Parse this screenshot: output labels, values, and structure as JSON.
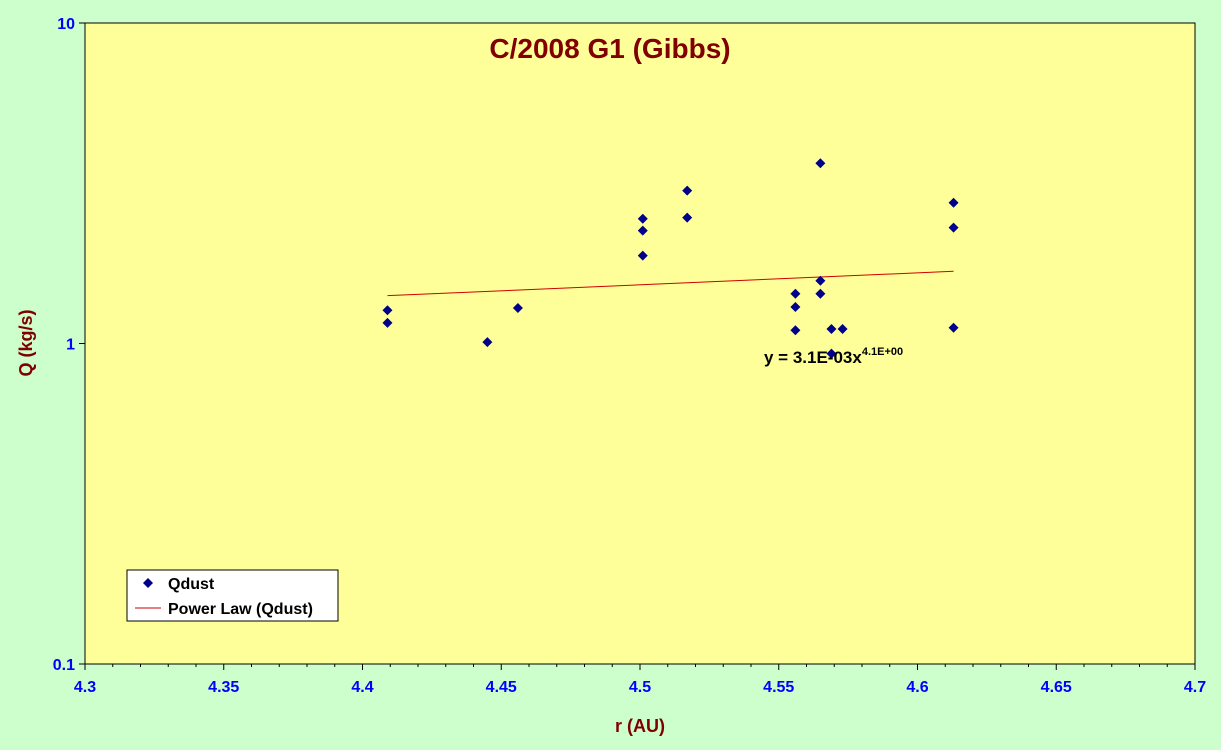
{
  "colors": {
    "background": "#ccffcc",
    "plot_area": "#ffff99",
    "title": "#800000",
    "axis_labels": "#0000ff",
    "marker": "#00008b",
    "trendline": "#cc0000"
  },
  "chart_data": {
    "type": "scatter",
    "title": "C/2008 G1 (Gibbs)",
    "xlabel": "r (AU)",
    "ylabel": "Q (kg/s)",
    "xlim": [
      4.3,
      4.7
    ],
    "ylim": [
      0.1,
      10
    ],
    "yscale": "log",
    "xticks": [
      "4.3",
      "4.35",
      "4.4",
      "4.45",
      "4.5",
      "4.55",
      "4.6",
      "4.65",
      "4.7"
    ],
    "yticks": [
      "0.1",
      "1",
      "10"
    ],
    "grid": false,
    "legend_position": "bottom-left",
    "series": [
      {
        "name": "Qdust",
        "marker": "diamond",
        "x": [
          4.409,
          4.409,
          4.445,
          4.456,
          4.501,
          4.501,
          4.501,
          4.517,
          4.517,
          4.556,
          4.556,
          4.556,
          4.565,
          4.565,
          4.565,
          4.569,
          4.569,
          4.573,
          4.613,
          4.613,
          4.613
        ],
        "y": [
          1.27,
          1.16,
          1.01,
          1.29,
          2.45,
          2.25,
          1.88,
          3.0,
          2.47,
          1.43,
          1.3,
          1.1,
          3.65,
          1.57,
          1.43,
          1.11,
          0.93,
          1.11,
          2.75,
          2.3,
          1.12
        ]
      }
    ],
    "trendline": {
      "name": "Power Law (Qdust)",
      "x": [
        4.409,
        4.613
      ],
      "y": [
        1.41,
        1.68
      ],
      "equation_main": "y = 3.1E-03x",
      "equation_exp": "4.1E+00"
    }
  },
  "legend": {
    "series_label": "Qdust",
    "trend_label": "Power Law (Qdust)"
  }
}
